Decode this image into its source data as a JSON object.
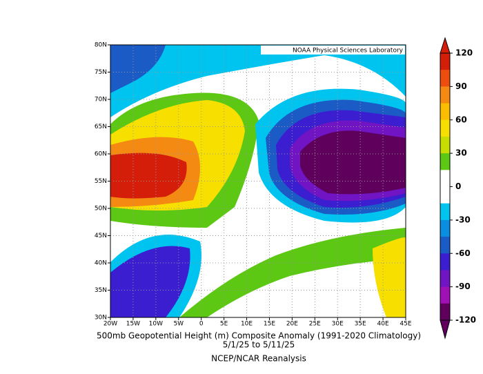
{
  "map": {
    "title": "500mb Geopotential Height (m) Composite Anomaly (1991-2020 Climatology)",
    "dates": "5/1/25  to 5/11/25",
    "source": "NCEP/NCAR Reanalysis",
    "credit": "NOAA Physical Sciences Laboratory",
    "lat_labels": [
      "80N",
      "75N",
      "70N",
      "65N",
      "60N",
      "55N",
      "50N",
      "45N",
      "40N",
      "35N",
      "30N"
    ],
    "lon_labels": [
      "20W",
      "15W",
      "10W",
      "5W",
      "0",
      "5E",
      "10E",
      "15E",
      "20E",
      "25E",
      "30E",
      "35E",
      "40E",
      "45E"
    ],
    "colorbar": {
      "ticks": [
        120,
        90,
        60,
        30,
        0,
        -30,
        -60,
        -90,
        -120
      ],
      "colors": [
        "#d51e0a",
        "#ee4d10",
        "#f58a12",
        "#fbbd00",
        "#f7e000",
        "#c8de00",
        "#5cc814",
        "#ffffff",
        "#ffffff",
        "#00c4f0",
        "#0a8ee0",
        "#1a5bc6",
        "#3a1ed0",
        "#7014c4",
        "#a010b4",
        "#5e005c"
      ]
    }
  }
}
